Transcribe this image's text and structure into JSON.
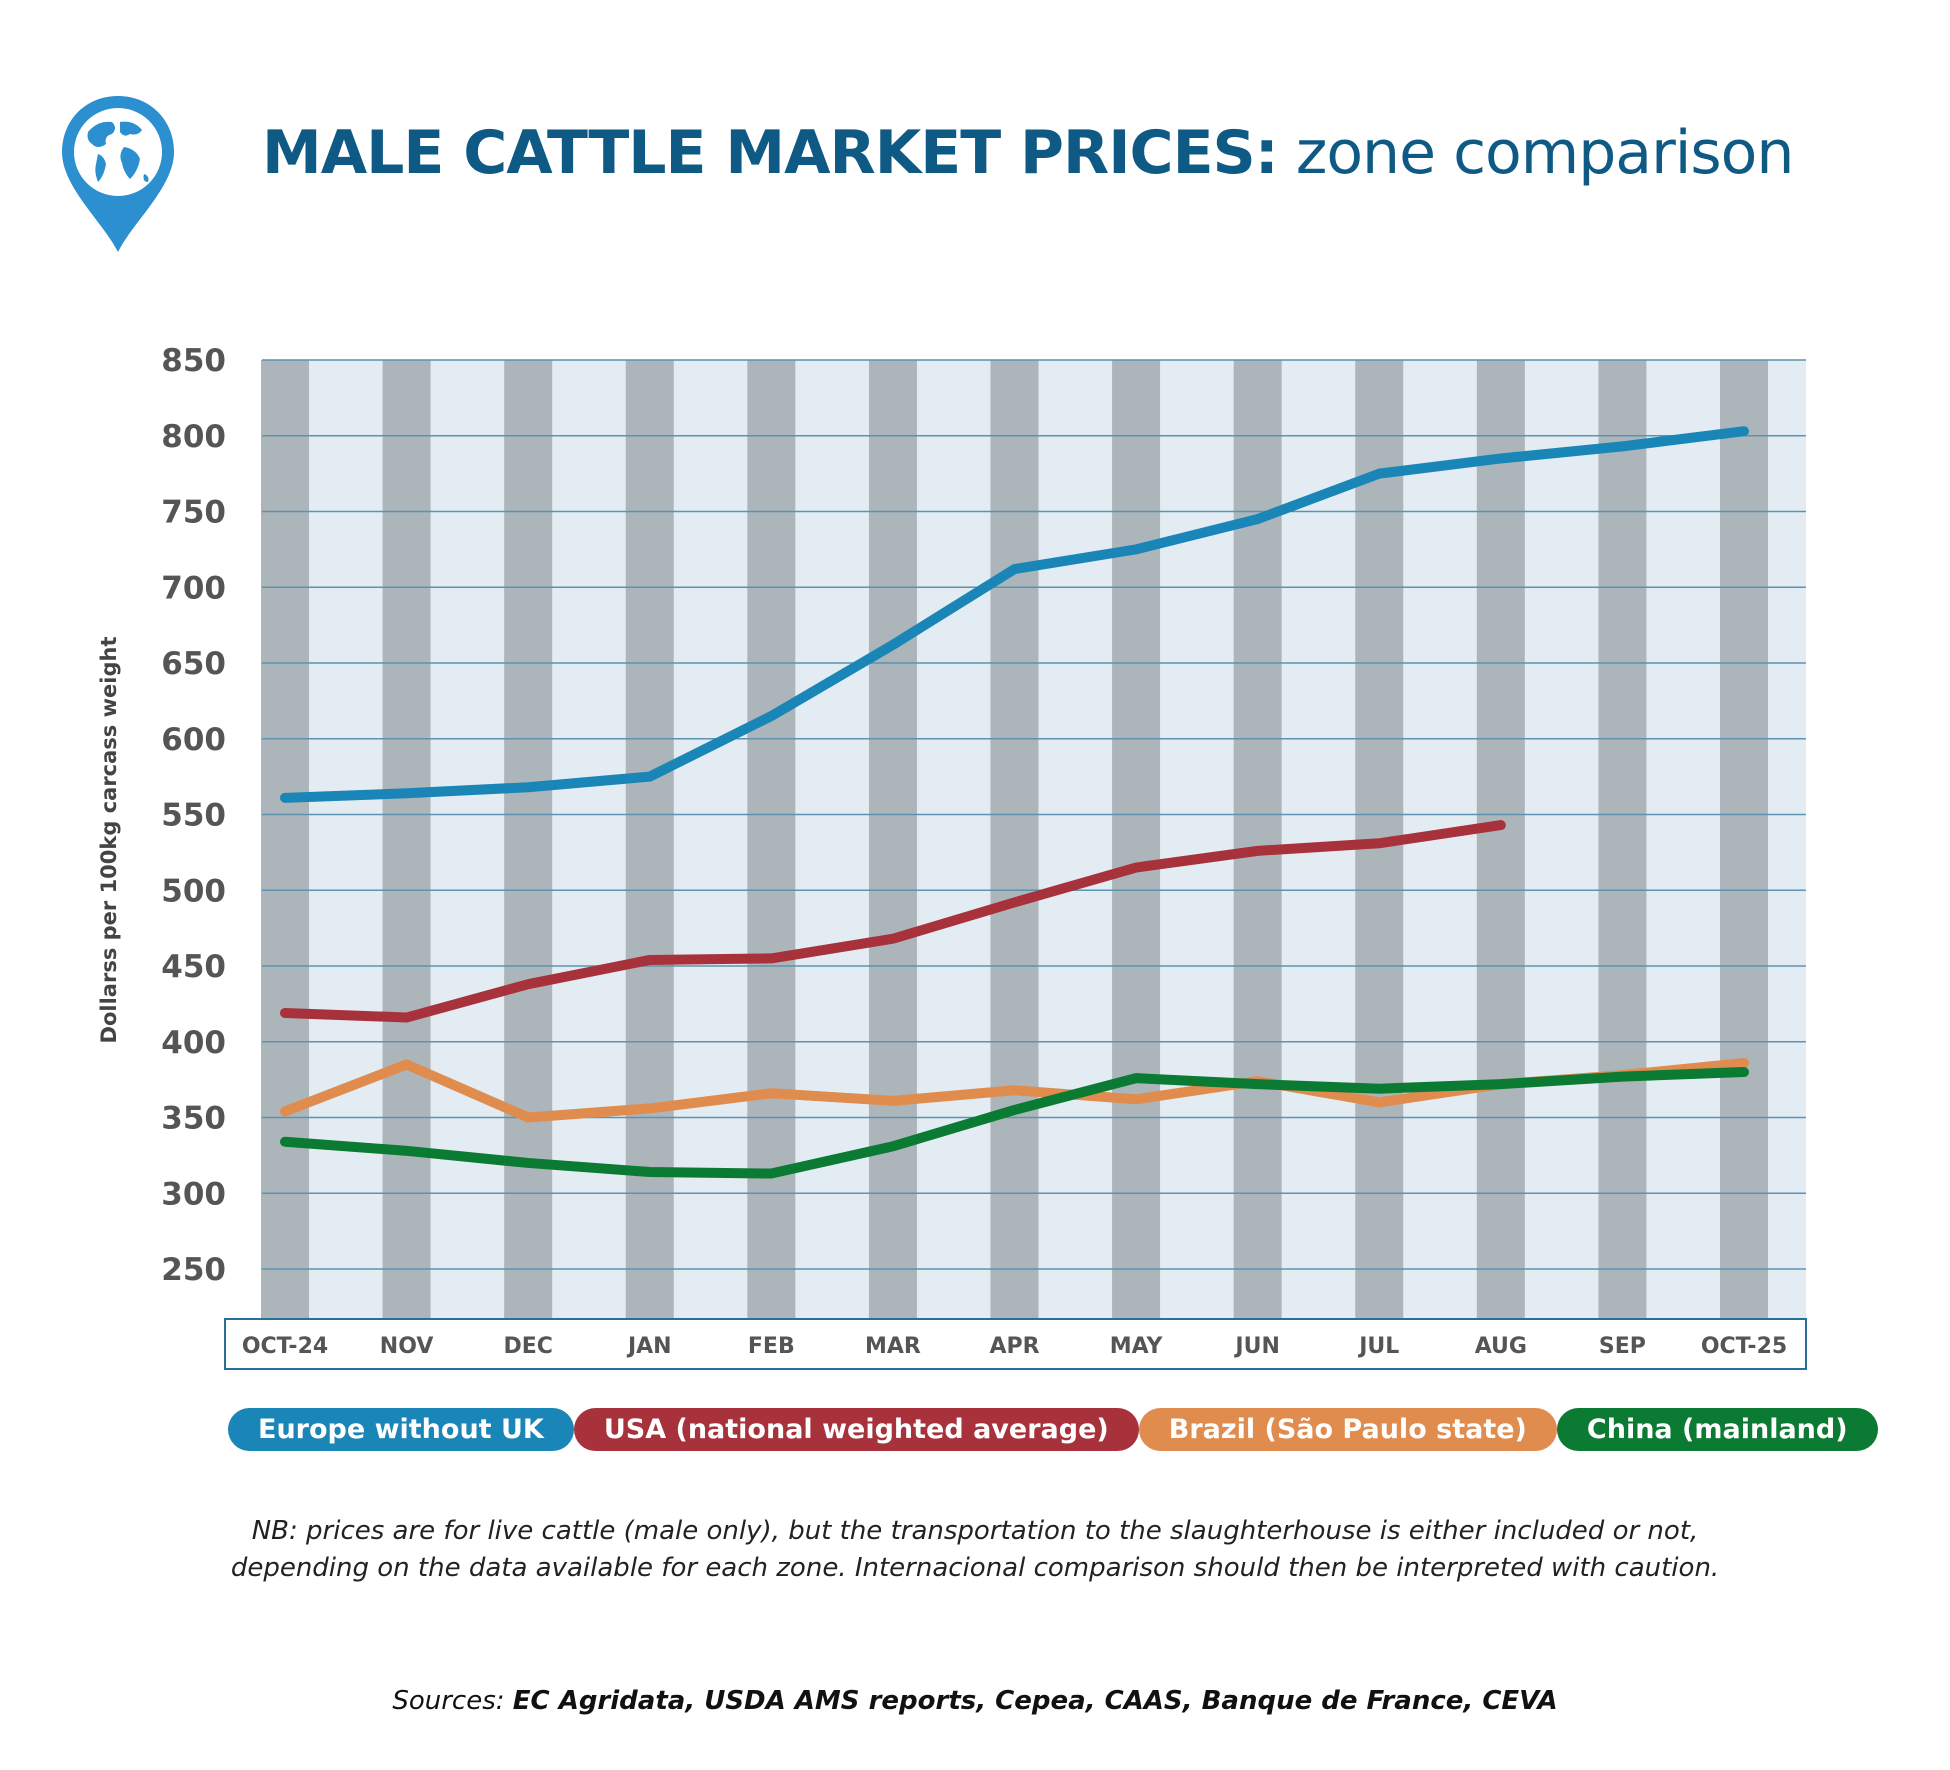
{
  "header": {
    "title_bold": "MALE CATTLE MARKET PRICES:",
    "title_rest": " zone comparison"
  },
  "note": {
    "line1": "NB: prices are for live cattle (male only), but the transportation to the slaughterhouse is either included or not,",
    "line2": "depending on the data available for each zone. Internacional comparison should then be interpreted with caution."
  },
  "sources": {
    "label": "Sources: ",
    "list": "EC Agridata, USDA AMS reports, Cepea, CAAS, Banque de France, CEVA"
  },
  "chart_data": {
    "type": "line",
    "title": "MALE CATTLE MARKET PRICES: zone comparison",
    "xlabel": "",
    "ylabel": "Dollarss per 100kg carcass weight",
    "ylim": [
      210,
      850
    ],
    "yticks": [
      250,
      300,
      350,
      400,
      450,
      500,
      550,
      600,
      650,
      700,
      750,
      800,
      850
    ],
    "categories": [
      "OCT-24",
      "NOV",
      "DEC",
      "JAN",
      "FEB",
      "MAR",
      "APR",
      "MAY",
      "JUN",
      "JUL",
      "AUG",
      "SEP",
      "OCT-25"
    ],
    "legend_position": "bottom",
    "series": [
      {
        "name": "Europe without UK",
        "color": "#1a86b8",
        "values": [
          561,
          564,
          568,
          575,
          615,
          662,
          712,
          725,
          745,
          775,
          785,
          793,
          803
        ]
      },
      {
        "name": "USA (national weighted average)",
        "color": "#a8323b",
        "values": [
          419,
          416,
          438,
          454,
          455,
          468,
          492,
          515,
          526,
          531,
          543,
          null,
          null
        ]
      },
      {
        "name": "Brazil (São Paulo state)",
        "color": "#e08c4f",
        "values": [
          354,
          385,
          350,
          356,
          366,
          361,
          368,
          362,
          374,
          360,
          372,
          378,
          386
        ]
      },
      {
        "name": "China (mainland)",
        "color": "#0b7a32",
        "values": [
          334,
          328,
          320,
          314,
          313,
          331,
          355,
          376,
          372,
          369,
          372,
          377,
          380
        ]
      }
    ]
  }
}
